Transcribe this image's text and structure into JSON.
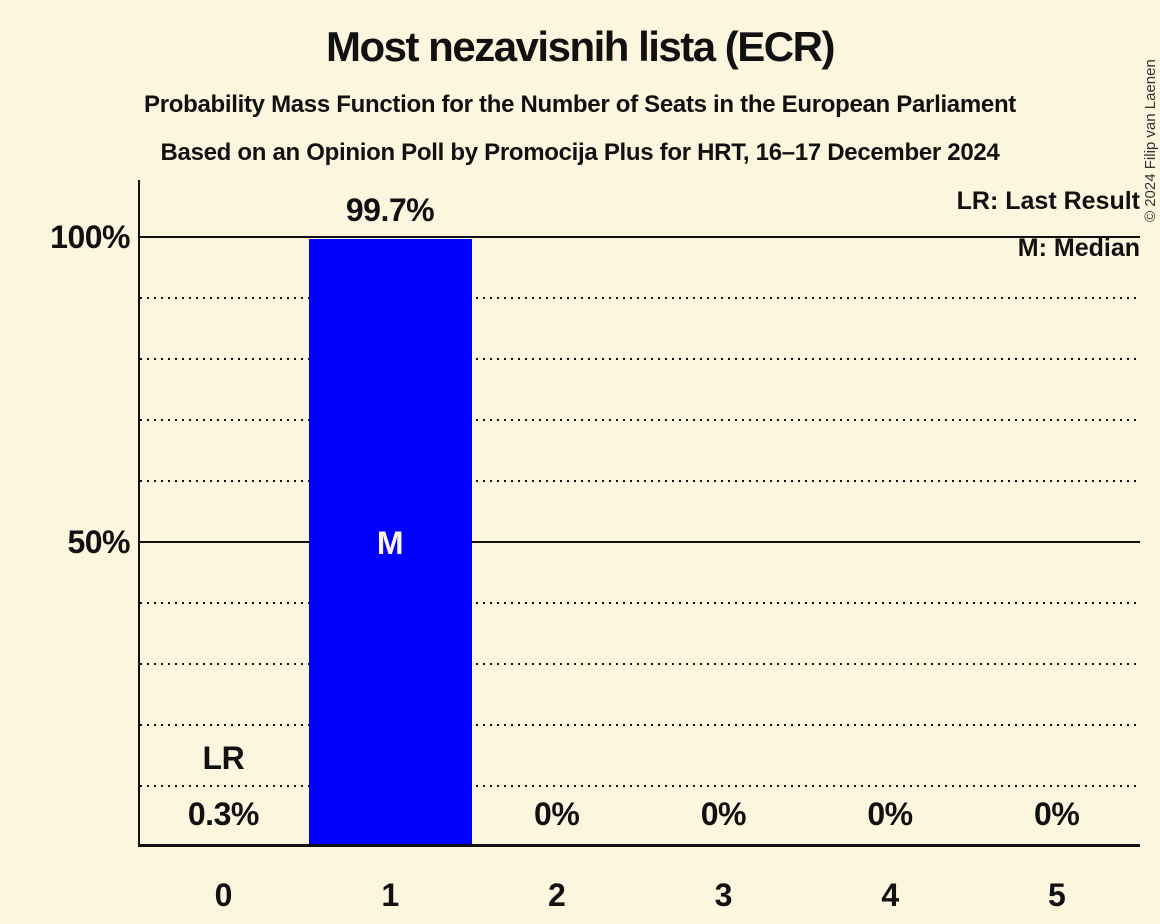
{
  "header": {
    "title": "Most nezavisnih lista (ECR)",
    "subtitle": "Probability Mass Function for the Number of Seats in the European Parliament",
    "source": "Based on an Opinion Poll by Promocija Plus for HRT, 16–17 December 2024"
  },
  "legend": {
    "last_result": "LR: Last Result",
    "median": "M: Median"
  },
  "copyright": "© 2024 Filip van Laenen",
  "colors": {
    "background": "#fdf6df",
    "bar": "#0000ff",
    "text": "#111111",
    "bar_label": "#fdf6df"
  },
  "chart_data": {
    "type": "bar",
    "title": "Most nezavisnih lista (ECR)",
    "categories": [
      "0",
      "1",
      "2",
      "3",
      "4",
      "5"
    ],
    "values": [
      0.3,
      99.7,
      0,
      0,
      0,
      0
    ],
    "value_labels": [
      "0.3%",
      "99.7%",
      "0%",
      "0%",
      "0%",
      "0%"
    ],
    "ylim": [
      0,
      100
    ],
    "y_ticks": [
      {
        "label": "100%",
        "value": 100
      },
      {
        "label": "50%",
        "value": 50
      }
    ],
    "gridlines_solid": [
      100,
      50
    ],
    "gridlines_dotted": [
      90,
      80,
      70,
      60,
      40,
      30,
      20,
      10
    ],
    "grid": true,
    "legend_position": "top-right",
    "median_index": 1,
    "median_marker": "M",
    "last_result_index": 0,
    "last_result_marker": "LR"
  }
}
